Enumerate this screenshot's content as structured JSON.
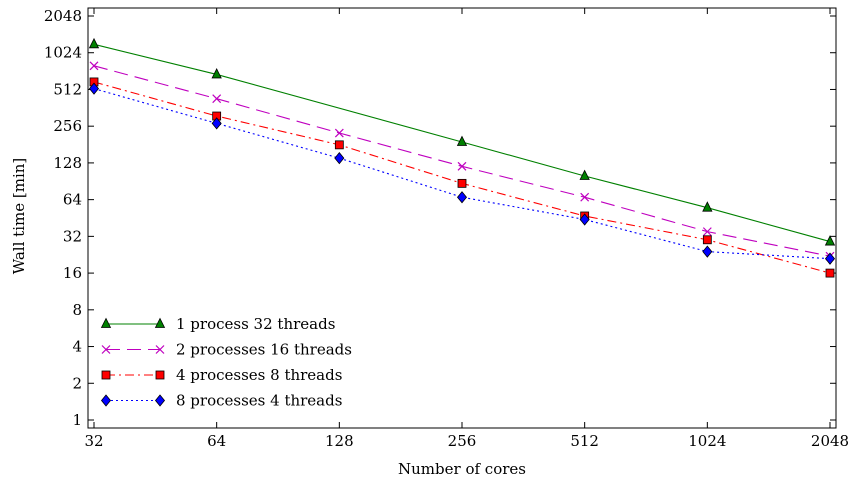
{
  "chart_data": {
    "type": "line",
    "title": "",
    "xlabel": "Number of cores",
    "ylabel": "Wall time [min]",
    "x_scale": "log2",
    "y_scale": "log2",
    "xlim": [
      32,
      2048
    ],
    "ylim": [
      1,
      2048
    ],
    "x_ticks": [
      32,
      64,
      128,
      256,
      512,
      1024,
      2048
    ],
    "y_ticks": [
      1,
      2,
      4,
      8,
      16,
      32,
      64,
      128,
      256,
      512,
      1024,
      2048
    ],
    "x": [
      32,
      64,
      128,
      256,
      512,
      1024,
      2048
    ],
    "grid": false,
    "legend_position": "lower-left",
    "series": [
      {
        "name": "1 process 32 threads",
        "values": [
          1200,
          680,
          null,
          190,
          100,
          55,
          29
        ],
        "color": "#008000",
        "marker": "triangle",
        "line_style": "solid"
      },
      {
        "name": "2 processes 16 threads",
        "values": [
          800,
          430,
          225,
          120,
          67,
          35,
          22
        ],
        "color": "#bf00bf",
        "marker": "x",
        "line_style": "dashed"
      },
      {
        "name": "4 processes 8 threads",
        "values": [
          590,
          310,
          180,
          87,
          47,
          30,
          16
        ],
        "color": "#ff0000",
        "marker": "square",
        "line_style": "dashdot"
      },
      {
        "name": "8 processes 4 threads",
        "values": [
          520,
          270,
          140,
          67,
          44,
          24,
          21
        ],
        "color": "#0000ff",
        "marker": "diamond",
        "line_style": "dotted"
      }
    ]
  }
}
